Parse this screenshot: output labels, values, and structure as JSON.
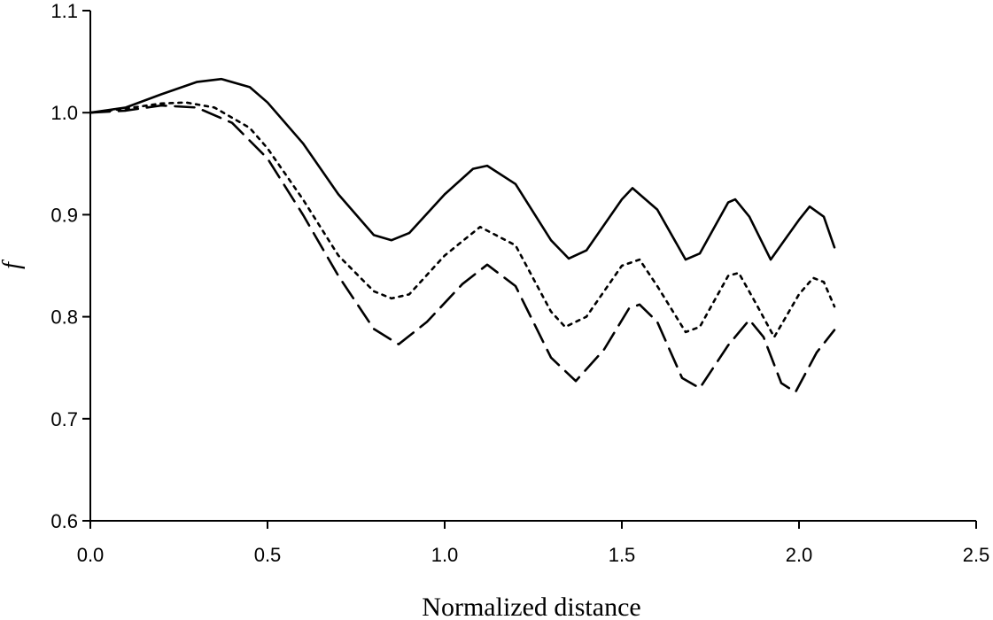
{
  "chart_data": {
    "type": "line",
    "title": "",
    "xlabel": "Normalized distance",
    "ylabel": "f",
    "xlim": [
      0.0,
      2.5
    ],
    "ylim": [
      0.6,
      1.1
    ],
    "xticks": [
      0.0,
      0.5,
      1.0,
      1.5,
      2.0,
      2.5
    ],
    "xtick_labels": [
      "0.0",
      "0.5",
      "1.0",
      "1.5",
      "2.0",
      "2.5"
    ],
    "yticks": [
      0.6,
      0.7,
      0.8,
      0.9,
      1.0,
      1.1
    ],
    "ytick_labels": [
      "0.6",
      "0.7",
      "0.8",
      "0.9",
      "1.0",
      "1.1"
    ],
    "grid": false,
    "legend": "none",
    "series": [
      {
        "style": "solid",
        "color": "#000000",
        "x": [
          0.0,
          0.1,
          0.2,
          0.3,
          0.37,
          0.45,
          0.5,
          0.6,
          0.7,
          0.8,
          0.85,
          0.9,
          1.0,
          1.08,
          1.12,
          1.2,
          1.3,
          1.35,
          1.4,
          1.5,
          1.53,
          1.6,
          1.68,
          1.72,
          1.8,
          1.82,
          1.86,
          1.92,
          2.0,
          2.03,
          2.07,
          2.1
        ],
        "y": [
          1.0,
          1.005,
          1.018,
          1.03,
          1.033,
          1.025,
          1.01,
          0.97,
          0.92,
          0.88,
          0.875,
          0.882,
          0.92,
          0.945,
          0.948,
          0.93,
          0.875,
          0.857,
          0.865,
          0.915,
          0.926,
          0.905,
          0.856,
          0.862,
          0.912,
          0.915,
          0.898,
          0.856,
          0.895,
          0.908,
          0.898,
          0.868
        ]
      },
      {
        "style": "dotted",
        "color": "#000000",
        "x": [
          0.0,
          0.1,
          0.2,
          0.27,
          0.35,
          0.45,
          0.5,
          0.6,
          0.7,
          0.8,
          0.85,
          0.9,
          1.0,
          1.1,
          1.2,
          1.3,
          1.34,
          1.4,
          1.5,
          1.55,
          1.6,
          1.68,
          1.72,
          1.8,
          1.83,
          1.88,
          1.93,
          2.0,
          2.04,
          2.07,
          2.1
        ],
        "y": [
          1.0,
          1.004,
          1.009,
          1.01,
          1.005,
          0.985,
          0.965,
          0.915,
          0.86,
          0.825,
          0.818,
          0.822,
          0.86,
          0.888,
          0.87,
          0.805,
          0.79,
          0.8,
          0.85,
          0.856,
          0.83,
          0.785,
          0.79,
          0.84,
          0.843,
          0.812,
          0.78,
          0.822,
          0.838,
          0.834,
          0.81
        ]
      },
      {
        "style": "dashed",
        "color": "#000000",
        "x": [
          0.0,
          0.1,
          0.2,
          0.3,
          0.4,
          0.5,
          0.6,
          0.7,
          0.8,
          0.87,
          0.95,
          1.05,
          1.12,
          1.2,
          1.3,
          1.37,
          1.45,
          1.52,
          1.55,
          1.6,
          1.67,
          1.72,
          1.8,
          1.86,
          1.9,
          1.95,
          1.99,
          2.05,
          2.1
        ],
        "y": [
          1.0,
          1.002,
          1.007,
          1.005,
          0.99,
          0.955,
          0.9,
          0.84,
          0.788,
          0.773,
          0.795,
          0.832,
          0.851,
          0.83,
          0.76,
          0.737,
          0.768,
          0.808,
          0.812,
          0.795,
          0.74,
          0.73,
          0.772,
          0.797,
          0.78,
          0.735,
          0.726,
          0.765,
          0.787
        ]
      }
    ]
  }
}
